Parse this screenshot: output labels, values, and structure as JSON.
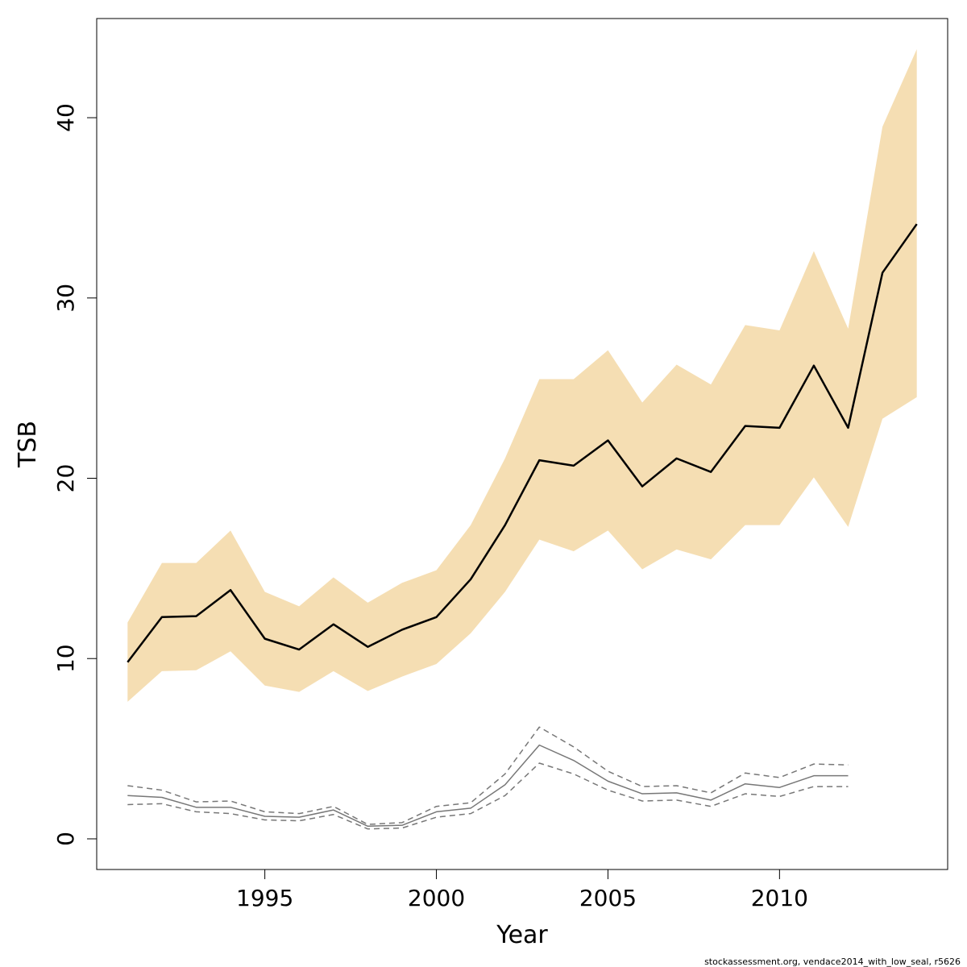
{
  "chart_data": {
    "type": "line",
    "xlabel": "Year",
    "ylabel": "TSB",
    "xlim": [
      1990.1,
      2014.9
    ],
    "ylim": [
      -1.7,
      45.5
    ],
    "x_ticks": [
      1995,
      2000,
      2005,
      2010
    ],
    "y_ticks": [
      0,
      10,
      20,
      30,
      40
    ],
    "grid": false,
    "legend": "none",
    "x": [
      1991,
      1992,
      1993,
      1994,
      1995,
      1996,
      1997,
      1998,
      1999,
      2000,
      2001,
      2002,
      2003,
      2004,
      2005,
      2006,
      2007,
      2008,
      2009,
      2010,
      2011,
      2012,
      2013,
      2014
    ],
    "series": [
      {
        "role": "estimate",
        "color": "#000000",
        "style": "solid",
        "values": [
          9.8,
          12.3,
          12.35,
          13.8,
          11.1,
          10.5,
          11.9,
          10.65,
          11.6,
          12.3,
          14.4,
          17.4,
          21.0,
          20.7,
          22.1,
          19.55,
          21.1,
          20.35,
          22.9,
          22.8,
          26.25,
          22.8,
          31.4,
          34.1
        ]
      },
      {
        "role": "confidence_band",
        "color": "#f5deb3",
        "lower": [
          7.6,
          9.3,
          9.35,
          10.4,
          8.5,
          8.15,
          9.3,
          8.2,
          9.0,
          9.7,
          11.4,
          13.7,
          16.6,
          15.95,
          17.1,
          14.95,
          16.05,
          15.5,
          17.4,
          17.4,
          20.05,
          17.3,
          23.3,
          24.5
        ],
        "upper": [
          12.0,
          15.3,
          15.3,
          17.1,
          13.7,
          12.9,
          14.5,
          13.1,
          14.2,
          14.9,
          17.4,
          21.1,
          25.5,
          25.5,
          27.1,
          24.2,
          26.3,
          25.2,
          28.5,
          28.2,
          32.6,
          28.3,
          39.5,
          43.8
        ]
      },
      {
        "role": "previous_estimate",
        "color": "#777777",
        "style": "solid",
        "x": [
          1991,
          1992,
          1993,
          1994,
          1995,
          1996,
          1997,
          1998,
          1999,
          2000,
          2001,
          2002,
          2003,
          2004,
          2005,
          2006,
          2007,
          2008,
          2009,
          2010,
          2011,
          2012
        ],
        "values": [
          2.4,
          2.3,
          1.75,
          1.75,
          1.25,
          1.2,
          1.6,
          0.7,
          0.75,
          1.5,
          1.7,
          3.0,
          5.2,
          4.35,
          3.2,
          2.5,
          2.55,
          2.15,
          3.05,
          2.85,
          3.5,
          3.5
        ]
      },
      {
        "role": "previous_lower",
        "color": "#777777",
        "style": "dashed",
        "x": [
          1991,
          1992,
          1993,
          1994,
          1995,
          1996,
          1997,
          1998,
          1999,
          2000,
          2001,
          2002,
          2003,
          2004,
          2005,
          2006,
          2007,
          2008,
          2009,
          2010,
          2011,
          2012
        ],
        "values": [
          1.9,
          1.95,
          1.5,
          1.4,
          1.05,
          1.0,
          1.35,
          0.55,
          0.6,
          1.2,
          1.4,
          2.4,
          4.2,
          3.6,
          2.7,
          2.1,
          2.15,
          1.8,
          2.5,
          2.35,
          2.9,
          2.9
        ]
      },
      {
        "role": "previous_upper",
        "color": "#777777",
        "style": "dashed",
        "x": [
          1991,
          1992,
          1993,
          1994,
          1995,
          1996,
          1997,
          1998,
          1999,
          2000,
          2001,
          2002,
          2003,
          2004,
          2005,
          2006,
          2007,
          2008,
          2009,
          2010,
          2011,
          2012
        ],
        "values": [
          2.95,
          2.7,
          2.05,
          2.1,
          1.5,
          1.4,
          1.8,
          0.8,
          0.9,
          1.8,
          2.0,
          3.6,
          6.2,
          5.1,
          3.75,
          2.9,
          2.95,
          2.55,
          3.65,
          3.4,
          4.15,
          4.1
        ]
      }
    ]
  },
  "footer": {
    "text": "stockassessment.org, vendace2014_with_low_seal, r5626"
  }
}
